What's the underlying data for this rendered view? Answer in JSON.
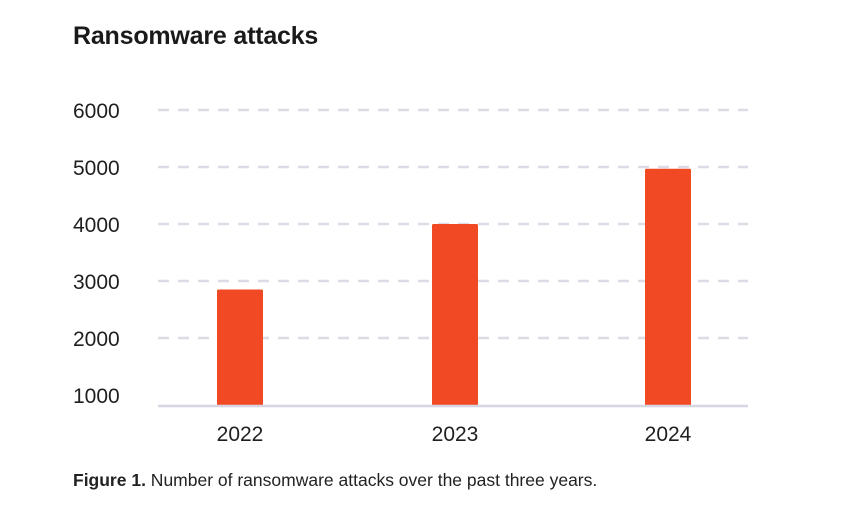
{
  "chart_data": {
    "type": "bar",
    "title": "Ransomware attacks",
    "categories": [
      "2022",
      "2023",
      "2024"
    ],
    "values": [
      2850,
      4000,
      4970
    ],
    "ylim": [
      1000,
      6000
    ],
    "yticks": [
      1000,
      2000,
      3000,
      4000,
      5000,
      6000
    ],
    "ytick_labels": [
      "1000",
      "2000",
      "3000",
      "4000",
      "5000",
      "6000"
    ],
    "xlabel": "",
    "ylabel": "",
    "grid": "dashed horizontal",
    "bar_color": "#f04923",
    "grid_color": "#dcdce6",
    "axis_color": "#d6d6e2"
  },
  "caption": {
    "label": "Figure 1.",
    "text": " Number of ransomware attacks over the past three years."
  }
}
